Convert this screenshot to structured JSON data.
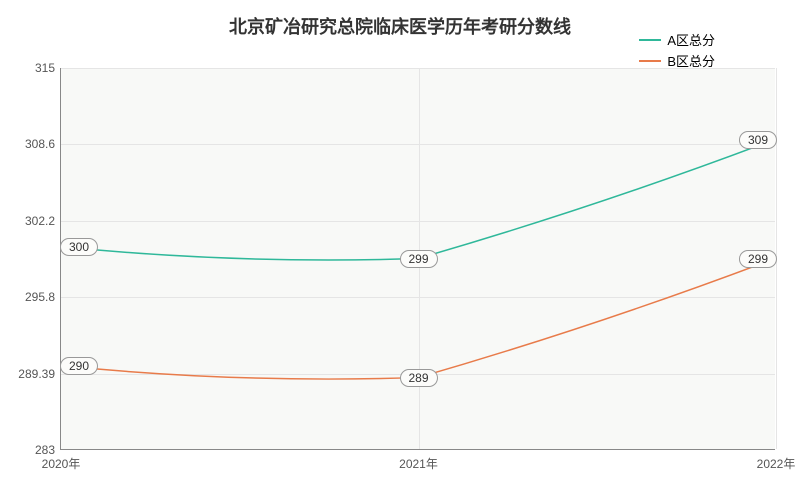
{
  "chart": {
    "type": "line",
    "title": "北京矿冶研究总院临床医学历年考研分数线",
    "title_fontsize": 18,
    "title_color": "#333333",
    "background_color": "#ffffff",
    "plot_background_color": "#f8f9f7",
    "grid_color": "#e5e5e5",
    "axis_color": "#888888",
    "label_fontsize": 12,
    "x": {
      "categories": [
        "2020年",
        "2021年",
        "2022年"
      ],
      "positions_pct": [
        0,
        50,
        100
      ]
    },
    "y": {
      "min": 283,
      "max": 315,
      "ticks": [
        283,
        289.39,
        295.8,
        302.2,
        308.6,
        315
      ],
      "tick_labels": [
        "283",
        "289.39",
        "295.8",
        "302.2",
        "308.6",
        "315"
      ]
    },
    "series": [
      {
        "name": "A区总分",
        "color": "#2fb89a",
        "line_width": 1.5,
        "values": [
          300,
          299,
          309
        ],
        "labels": [
          "300",
          "299",
          "309"
        ],
        "smooth": true
      },
      {
        "name": "B区总分",
        "color": "#e87b4a",
        "line_width": 1.5,
        "values": [
          290,
          289,
          299
        ],
        "labels": [
          "290",
          "289",
          "299"
        ],
        "smooth": true
      }
    ],
    "legend": {
      "position": "top-right",
      "fontsize": 13
    },
    "label_box": {
      "background": "#fcfcfa",
      "border_color": "#999999",
      "border_radius": 9,
      "fontsize": 12
    }
  }
}
